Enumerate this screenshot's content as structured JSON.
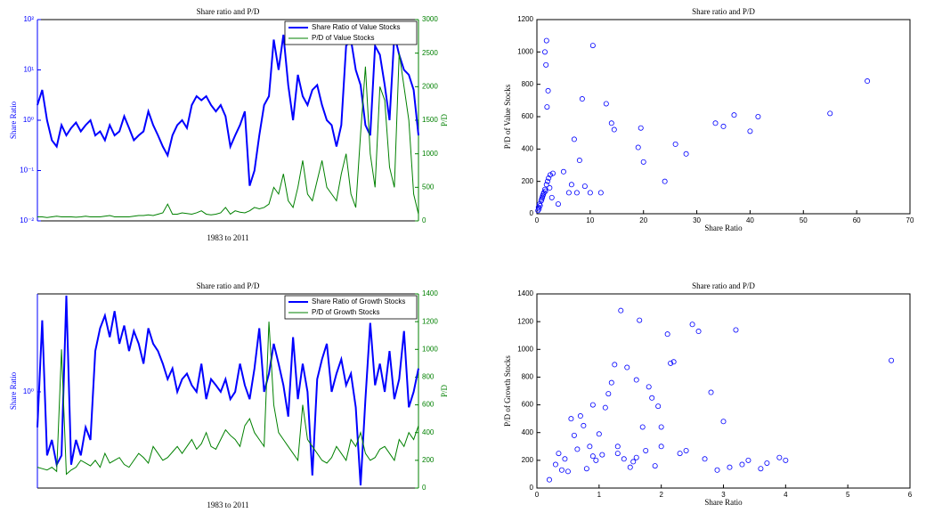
{
  "chart_data": [
    {
      "type": "line",
      "title": "Share ratio and P/D",
      "xlabel": "1983 to 2011",
      "ylabel": "Share Ratio",
      "y2label": "P/D",
      "log_y": true,
      "legend": "upper right",
      "ylim": [
        0.01,
        100
      ],
      "yticks": [
        {
          "value": 0.01,
          "label": "10⁻²"
        },
        {
          "value": 0.1,
          "label": "10⁻¹"
        },
        {
          "value": 1,
          "label": "10⁰"
        },
        {
          "value": 10,
          "label": "10¹"
        },
        {
          "value": 100,
          "label": "10²"
        }
      ],
      "y2lim": [
        0,
        3000
      ],
      "y2ticks": [
        0,
        500,
        1000,
        1500,
        2000,
        2500,
        3000
      ],
      "series": [
        {
          "name": "Share Ratio of Value Stocks",
          "color": "#0000ff",
          "values": [
            2,
            4,
            1,
            0.4,
            0.3,
            0.8,
            0.5,
            0.7,
            0.9,
            0.6,
            0.8,
            1,
            0.5,
            0.6,
            0.4,
            0.8,
            0.5,
            0.6,
            1.2,
            0.7,
            0.4,
            0.5,
            0.6,
            1.5,
            0.8,
            0.5,
            0.3,
            0.2,
            0.5,
            0.8,
            1,
            0.7,
            2,
            3,
            2.5,
            3,
            2,
            1.5,
            2,
            1.2,
            0.3,
            0.5,
            0.8,
            1.5,
            0.05,
            0.1,
            0.5,
            2,
            3,
            40,
            10,
            50,
            5,
            1,
            8,
            3,
            2,
            4,
            5,
            2,
            1,
            0.8,
            0.3,
            0.8,
            30,
            40,
            10,
            5,
            0.8,
            0.5,
            30,
            20,
            5,
            1,
            50,
            20,
            10,
            8,
            4,
            0.5
          ]
        },
        {
          "name": "P/D of Value Stocks",
          "color": "#008000",
          "axis": "y2",
          "values": [
            60,
            60,
            50,
            60,
            70,
            60,
            60,
            60,
            55,
            60,
            70,
            60,
            60,
            60,
            70,
            80,
            60,
            60,
            60,
            60,
            70,
            80,
            80,
            90,
            80,
            100,
            120,
            250,
            100,
            100,
            120,
            110,
            100,
            120,
            150,
            100,
            90,
            100,
            120,
            200,
            100,
            150,
            130,
            120,
            150,
            200,
            180,
            200,
            250,
            500,
            400,
            700,
            300,
            200,
            500,
            900,
            400,
            300,
            600,
            900,
            500,
            400,
            300,
            700,
            1000,
            400,
            200,
            1300,
            2300,
            1000,
            500,
            2000,
            1800,
            800,
            500,
            2500,
            2000,
            1500,
            400,
            100
          ]
        }
      ]
    },
    {
      "type": "scatter",
      "title": "Share ratio and P/D",
      "xlabel": "Share Ratio",
      "ylabel": "P/D of Value Stocks",
      "color": "#0000ff",
      "xlim": [
        0,
        70
      ],
      "xticks": [
        0,
        10,
        20,
        30,
        40,
        50,
        60,
        70
      ],
      "ylim": [
        0,
        1200
      ],
      "yticks": [
        0,
        200,
        400,
        600,
        800,
        1000,
        1200
      ],
      "x": [
        0.2,
        0.3,
        0.5,
        0.8,
        1,
        1.2,
        1.5,
        1.8,
        2,
        2.2,
        2.5,
        3,
        0.4,
        0.6,
        0.9,
        1.1,
        1.3,
        1.6,
        2.4,
        2.8,
        1.5,
        1.8,
        1.7,
        1.9,
        2.1,
        4,
        5,
        6,
        6.5,
        7,
        7.5,
        8,
        8.5,
        9,
        10,
        10.5,
        12,
        13,
        14,
        14.5,
        19,
        19.5,
        20,
        24,
        26,
        28,
        33.5,
        35,
        37,
        40,
        41.5,
        55,
        62
      ],
      "values": [
        20,
        40,
        60,
        80,
        100,
        120,
        150,
        180,
        200,
        220,
        240,
        250,
        30,
        50,
        90,
        110,
        130,
        140,
        160,
        100,
        1000,
        1070,
        920,
        660,
        760,
        60,
        260,
        130,
        180,
        460,
        130,
        330,
        710,
        170,
        130,
        1040,
        130,
        680,
        560,
        520,
        410,
        530,
        320,
        200,
        430,
        370,
        560,
        540,
        610,
        510,
        600,
        620,
        820
      ]
    },
    {
      "type": "line",
      "title": "Share ratio and P/D",
      "xlabel": "1983 to 2011",
      "ylabel": "Share Ratio",
      "y2label": "P/D",
      "log_y": true,
      "legend": "upper right",
      "ylim": [
        0.25,
        4.1
      ],
      "yticks": [
        {
          "value": 1,
          "label": "10⁰"
        }
      ],
      "y2lim": [
        0,
        1400
      ],
      "y2ticks": [
        0,
        200,
        400,
        600,
        800,
        1000,
        1200,
        1400
      ],
      "series": [
        {
          "name": "Share Ratio of Growth Stocks",
          "color": "#0000ff",
          "values": [
            0.6,
            2.8,
            0.4,
            0.5,
            0.35,
            0.4,
            4,
            0.35,
            0.5,
            0.4,
            0.6,
            0.5,
            1.8,
            2.5,
            3,
            2.2,
            3.2,
            2,
            2.6,
            1.8,
            2.4,
            2,
            1.5,
            2.5,
            2,
            1.8,
            1.5,
            1.2,
            1.4,
            1,
            1.2,
            1.3,
            1.1,
            1,
            1.5,
            0.9,
            1.2,
            1.1,
            1,
            1.2,
            0.9,
            1,
            1.5,
            1.1,
            0.9,
            1.4,
            2.5,
            1,
            1.3,
            2,
            1.5,
            1.1,
            0.7,
            2.2,
            0.9,
            1.5,
            1,
            0.3,
            1.2,
            1.6,
            2,
            1,
            1.3,
            1.6,
            1.1,
            1.3,
            0.8,
            0.26,
            0.9,
            2.7,
            1.1,
            1.5,
            1,
            1.8,
            0.9,
            1.2,
            2.4,
            0.8,
            1,
            1.4
          ]
        },
        {
          "name": "P/D of Growth Stocks",
          "color": "#008000",
          "axis": "y2",
          "values": [
            150,
            140,
            130,
            150,
            120,
            1000,
            100,
            130,
            150,
            200,
            180,
            160,
            200,
            150,
            250,
            180,
            200,
            220,
            170,
            150,
            200,
            250,
            220,
            180,
            300,
            250,
            200,
            220,
            260,
            300,
            250,
            300,
            350,
            280,
            320,
            400,
            300,
            280,
            350,
            420,
            380,
            350,
            300,
            450,
            500,
            400,
            350,
            300,
            1200,
            600,
            400,
            350,
            300,
            250,
            200,
            600,
            350,
            300,
            250,
            200,
            180,
            220,
            300,
            250,
            200,
            350,
            300,
            400,
            250,
            200,
            220,
            280,
            300,
            250,
            200,
            350,
            300,
            400,
            350,
            450
          ]
        }
      ]
    },
    {
      "type": "scatter",
      "title": "Share ratio and P/D",
      "xlabel": "Share Ratio",
      "ylabel": "P/D of Growth Stocks",
      "color": "#0000ff",
      "xlim": [
        0,
        6
      ],
      "xticks": [
        0,
        1,
        2,
        3,
        4,
        5,
        6
      ],
      "ylim": [
        0,
        1400
      ],
      "yticks": [
        0,
        200,
        400,
        600,
        800,
        1000,
        1200,
        1400
      ],
      "x": [
        0.2,
        0.3,
        0.35,
        0.4,
        0.45,
        0.5,
        0.55,
        0.6,
        0.65,
        0.7,
        0.75,
        0.8,
        0.85,
        0.9,
        0.95,
        1.0,
        1.05,
        1.1,
        1.15,
        1.2,
        1.25,
        1.3,
        1.35,
        1.4,
        1.45,
        1.5,
        1.55,
        1.6,
        1.65,
        1.7,
        1.75,
        1.8,
        1.85,
        1.9,
        1.95,
        2.0,
        2.1,
        2.15,
        2.2,
        2.3,
        2.4,
        2.5,
        2.6,
        2.7,
        2.8,
        2.9,
        3.0,
        3.1,
        3.2,
        3.3,
        3.4,
        3.6,
        3.7,
        3.9,
        4.0,
        5.7,
        0.9,
        1.3,
        1.6,
        2.0
      ],
      "values": [
        60,
        170,
        250,
        130,
        210,
        120,
        500,
        380,
        280,
        520,
        450,
        140,
        300,
        600,
        200,
        390,
        240,
        580,
        680,
        760,
        890,
        300,
        1280,
        210,
        870,
        150,
        190,
        780,
        1210,
        440,
        270,
        730,
        650,
        160,
        590,
        440,
        1110,
        900,
        910,
        250,
        270,
        1180,
        1130,
        210,
        690,
        130,
        480,
        150,
        1140,
        170,
        200,
        140,
        180,
        220,
        200,
        920,
        230,
        250,
        220,
        300
      ]
    }
  ]
}
